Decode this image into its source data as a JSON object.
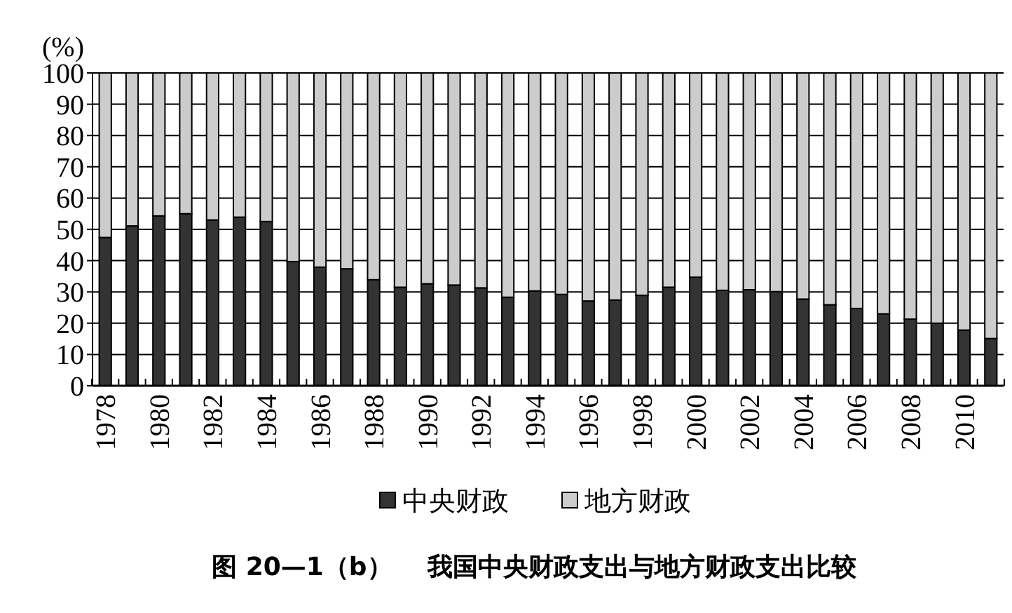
{
  "chart_data": {
    "type": "bar",
    "stacked": true,
    "title": "图 20—1（b）    我国中央财政支出与地方财政支出比较",
    "ylabel": "(%)",
    "categories": [
      "1978",
      null,
      "1980",
      null,
      "1982",
      null,
      "1984",
      null,
      "1986",
      null,
      "1988",
      null,
      "1990",
      null,
      "1992",
      null,
      "1994",
      null,
      "1996",
      null,
      "1998",
      null,
      "2000",
      null,
      "2002",
      null,
      "2004",
      null,
      "2006",
      null,
      "2008",
      null,
      "2010",
      null
    ],
    "series": [
      {
        "name": "中央财政",
        "color": "#333333",
        "values": [
          47.4,
          51.1,
          54.3,
          55.0,
          53.0,
          53.9,
          52.5,
          39.7,
          37.9,
          37.4,
          33.9,
          31.5,
          32.6,
          32.2,
          31.3,
          28.3,
          30.3,
          29.2,
          27.1,
          27.4,
          28.9,
          31.5,
          34.7,
          30.5,
          30.7,
          30.1,
          27.7,
          25.9,
          24.7,
          23.0,
          21.3,
          20.0,
          17.8,
          15.1
        ]
      },
      {
        "name": "地方财政",
        "color": "#cccccc",
        "values": [
          52.6,
          48.9,
          45.7,
          45.0,
          47.0,
          46.1,
          47.5,
          60.3,
          62.1,
          62.6,
          66.1,
          68.5,
          67.4,
          67.8,
          68.7,
          71.7,
          69.7,
          70.8,
          72.9,
          72.6,
          71.1,
          68.5,
          65.3,
          69.5,
          69.3,
          69.9,
          72.3,
          74.1,
          75.3,
          77.0,
          78.7,
          80.0,
          82.2,
          84.9
        ]
      }
    ],
    "ylim": [
      0,
      100
    ],
    "yticks": [
      0,
      10,
      20,
      30,
      40,
      50,
      60,
      70,
      80,
      90,
      100
    ],
    "grid": "y",
    "legend": "bottom"
  }
}
